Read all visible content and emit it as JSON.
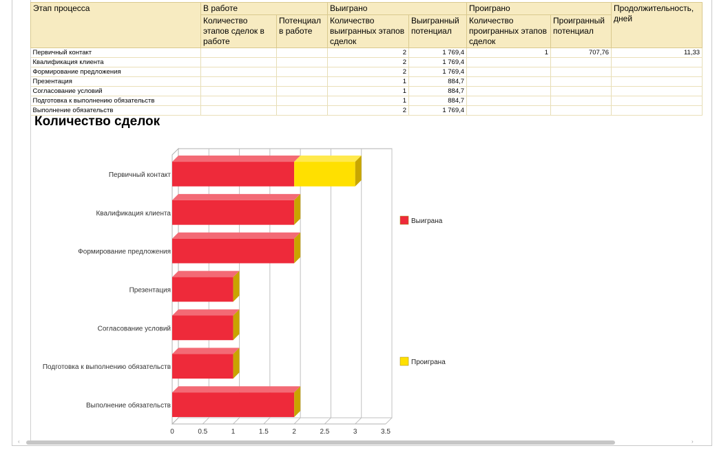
{
  "table": {
    "headers": {
      "stage": "Этап процесса",
      "in_work": "В работе",
      "won": "Выиграно",
      "lost": "Проиграно",
      "duration": "Продолжительность, дней",
      "in_work_count": "Количество этапов сделок в работе",
      "in_work_potential": "Потенциал в работе",
      "won_count": "Количество выигранных этапов сделок",
      "won_potential": "Выигранный потенциал",
      "lost_count": "Количество проигранных этапов сделок",
      "lost_potential": "Проигранный потенциал"
    },
    "rows": [
      {
        "stage": "Первичный контакт",
        "in_work_count": "",
        "in_work_potential": "",
        "won_count": "2",
        "won_potential": "1 769,4",
        "lost_count": "1",
        "lost_potential": "707,76",
        "duration": "11,33"
      },
      {
        "stage": "Квалификация клиента",
        "in_work_count": "",
        "in_work_potential": "",
        "won_count": "2",
        "won_potential": "1 769,4",
        "lost_count": "",
        "lost_potential": "",
        "duration": ""
      },
      {
        "stage": "Формирование предложения",
        "in_work_count": "",
        "in_work_potential": "",
        "won_count": "2",
        "won_potential": "1 769,4",
        "lost_count": "",
        "lost_potential": "",
        "duration": ""
      },
      {
        "stage": "Презентация",
        "in_work_count": "",
        "in_work_potential": "",
        "won_count": "1",
        "won_potential": "884,7",
        "lost_count": "",
        "lost_potential": "",
        "duration": ""
      },
      {
        "stage": "Согласование условий",
        "in_work_count": "",
        "in_work_potential": "",
        "won_count": "1",
        "won_potential": "884,7",
        "lost_count": "",
        "lost_potential": "",
        "duration": ""
      },
      {
        "stage": "Подготовка к выполнению обязательств",
        "in_work_count": "",
        "in_work_potential": "",
        "won_count": "1",
        "won_potential": "884,7",
        "lost_count": "",
        "lost_potential": "",
        "duration": ""
      },
      {
        "stage": "Выполнение обязательств",
        "in_work_count": "",
        "in_work_potential": "",
        "won_count": "2",
        "won_potential": "1 769,4",
        "lost_count": "",
        "lost_potential": "",
        "duration": ""
      }
    ]
  },
  "chart_title": "Количество сделок",
  "chart_data": {
    "type": "bar",
    "orientation": "horizontal",
    "stacked": true,
    "categories": [
      "Первичный контакт",
      "Квалификация клиента",
      "Формирование предложения",
      "Презентация",
      "Согласование условий",
      "Подготовка к выполнению обязательств",
      "Выполнение обязательств"
    ],
    "series": [
      {
        "name": "Выиграна",
        "values": [
          2,
          2,
          2,
          1,
          1,
          1,
          2
        ],
        "color": "#ee2a3a"
      },
      {
        "name": "Проиграна",
        "values": [
          1,
          0,
          0,
          0,
          0,
          0,
          0
        ],
        "color": "#ffe000"
      }
    ],
    "xlim": [
      0,
      3.5
    ],
    "ticks": [
      "0",
      "0.5",
      "1",
      "1.5",
      "2",
      "2.5",
      "3",
      "3.5"
    ],
    "grid": true,
    "legend_position": "right",
    "style": "3d"
  },
  "colors": {
    "header_bg": "#f7ebc1",
    "won": "#ee2a3a",
    "lost": "#ffe000"
  }
}
